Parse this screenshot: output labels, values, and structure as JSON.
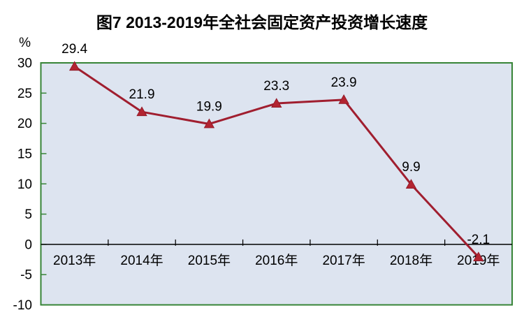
{
  "figure": {
    "title": "图7 2013-2019年全社会固定资产投资增长速度"
  },
  "chart_data": {
    "type": "line",
    "title": "图7 2013-2019年全社会固定资产投资增长速度",
    "ylabel": "%",
    "xlabel": "",
    "categories": [
      "2013年",
      "2014年",
      "2015年",
      "2016年",
      "2017年",
      "2018年",
      "2019年"
    ],
    "series": [
      {
        "name": "全社会固定资产投资增长速度",
        "values": [
          29.4,
          21.9,
          19.9,
          23.3,
          23.9,
          9.9,
          -2.1
        ]
      }
    ],
    "point_labels": [
      "29.4",
      "21.9",
      "19.9",
      "23.3",
      "23.9",
      "9.9",
      "-2.1"
    ],
    "ylim": [
      -10,
      30
    ],
    "yticks": [
      30,
      25,
      20,
      15,
      10,
      5,
      0,
      -5,
      -10
    ],
    "grid": false,
    "legend_position": "none",
    "marker_style": "triangle",
    "colors": {
      "line": "#A01E2F",
      "marker_fill": "#B22431",
      "marker_edge": "#8E1624",
      "plot_background": "#DDE4F0",
      "plot_border": "#378437",
      "axis_line": "#000000",
      "text": "#000000",
      "page_background": "#FFFFFF"
    }
  }
}
